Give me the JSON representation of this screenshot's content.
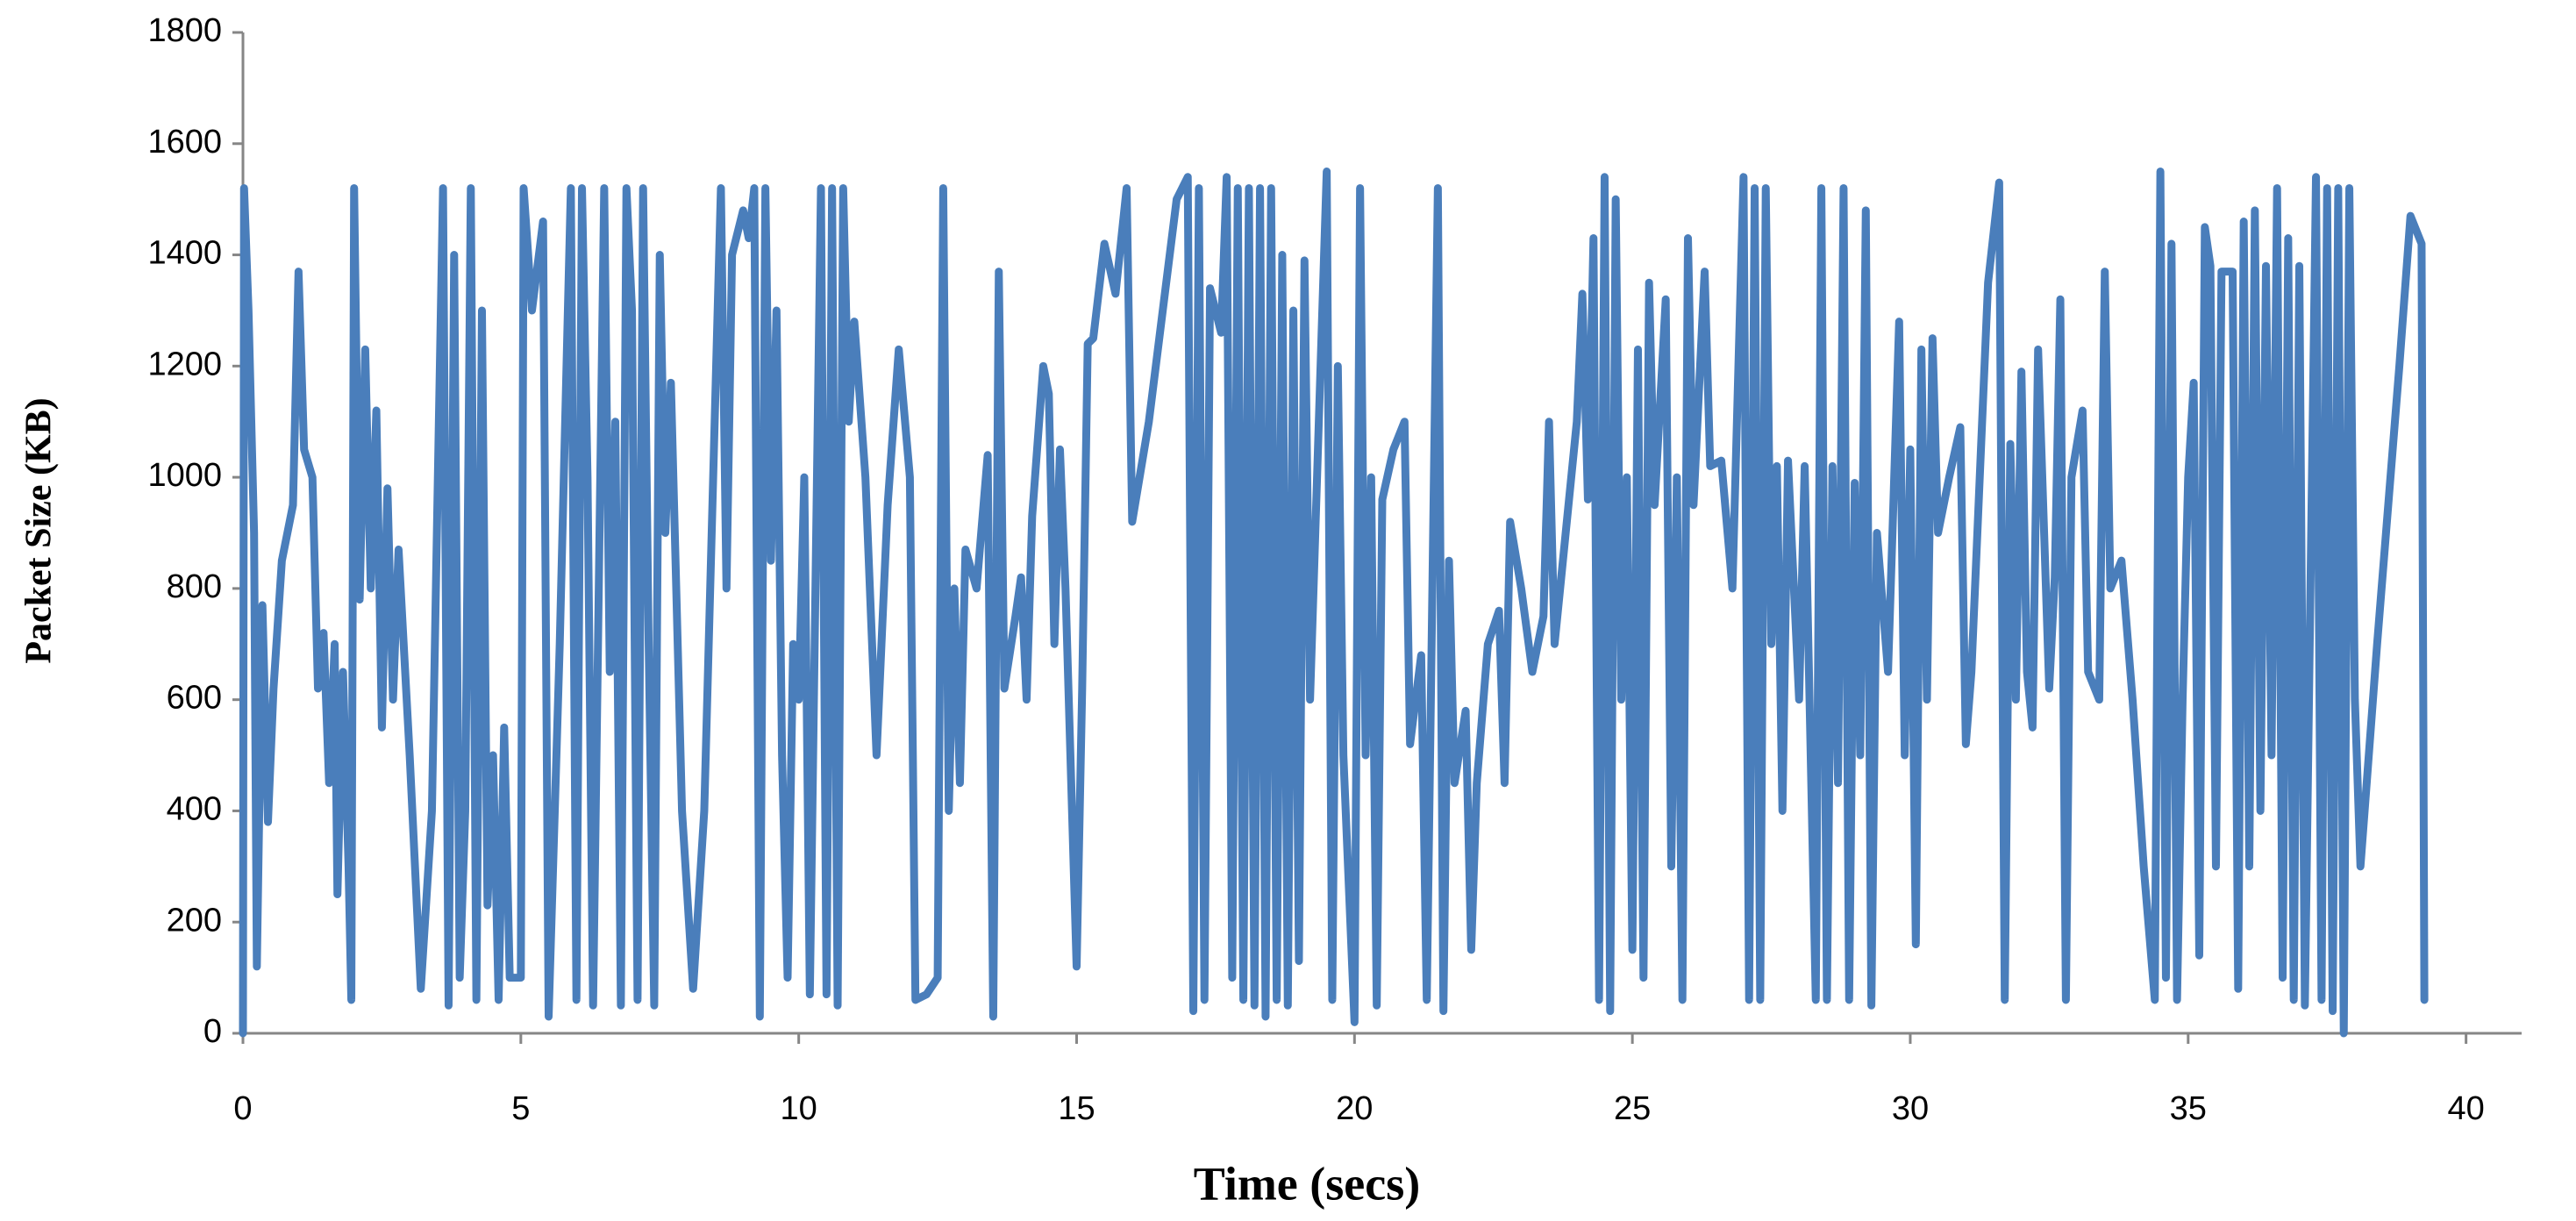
{
  "chart_data": {
    "type": "line",
    "x_label": "Time (secs)",
    "y_label": "Packet Size (KB)",
    "xlim": [
      0,
      41
    ],
    "xticks": [
      0,
      5,
      10,
      15,
      20,
      25,
      30,
      35,
      40
    ],
    "ylim": [
      0,
      1800
    ],
    "yticks": [
      0,
      200,
      400,
      600,
      800,
      1000,
      1200,
      1400,
      1600,
      1800
    ],
    "grid": false,
    "color": "#4a7ebb",
    "x": [
      0,
      0.02,
      0.1,
      0.2,
      0.25,
      0.35,
      0.45,
      0.55,
      0.7,
      0.9,
      1.0,
      1.1,
      1.25,
      1.35,
      1.45,
      1.55,
      1.65,
      1.7,
      1.8,
      1.9,
      1.95,
      2.0,
      2.1,
      2.2,
      2.3,
      2.4,
      2.5,
      2.6,
      2.7,
      2.8,
      3.0,
      3.2,
      3.4,
      3.6,
      3.7,
      3.8,
      3.9,
      4.0,
      4.1,
      4.2,
      4.3,
      4.4,
      4.5,
      4.6,
      4.7,
      4.8,
      5.0,
      5.05,
      5.2,
      5.4,
      5.5,
      5.7,
      5.9,
      6.0,
      6.1,
      6.2,
      6.3,
      6.5,
      6.6,
      6.7,
      6.8,
      6.9,
      7.0,
      7.1,
      7.2,
      7.3,
      7.4,
      7.5,
      7.6,
      7.7,
      7.9,
      8.1,
      8.3,
      8.6,
      8.7,
      8.8,
      9.0,
      9.1,
      9.2,
      9.3,
      9.4,
      9.5,
      9.6,
      9.7,
      9.8,
      9.9,
      10.0,
      10.1,
      10.2,
      10.4,
      10.5,
      10.6,
      10.7,
      10.8,
      10.9,
      11.0,
      11.2,
      11.4,
      11.6,
      11.8,
      12.0,
      12.1,
      12.3,
      12.5,
      12.6,
      12.7,
      12.8,
      12.9,
      13.0,
      13.2,
      13.4,
      13.5,
      13.6,
      13.7,
      13.9,
      14.0,
      14.1,
      14.2,
      14.4,
      14.5,
      14.6,
      14.7,
      14.8,
      15.0,
      15.1,
      15.2,
      15.3,
      15.5,
      15.7,
      15.9,
      16.0,
      16.3,
      16.8,
      17.0,
      17.1,
      17.2,
      17.3,
      17.4,
      17.6,
      17.7,
      17.8,
      17.9,
      18.0,
      18.1,
      18.2,
      18.3,
      18.4,
      18.5,
      18.6,
      18.7,
      18.8,
      18.9,
      19.0,
      19.1,
      19.2,
      19.5,
      19.6,
      19.7,
      19.8,
      20.0,
      20.1,
      20.2,
      20.3,
      20.4,
      20.5,
      20.7,
      20.9,
      21.0,
      21.2,
      21.3,
      21.5,
      21.6,
      21.7,
      21.8,
      22.0,
      22.1,
      22.2,
      22.4,
      22.6,
      22.7,
      22.8,
      23.0,
      23.2,
      23.4,
      23.5,
      23.6,
      23.8,
      24.0,
      24.1,
      24.2,
      24.3,
      24.4,
      24.5,
      24.6,
      24.7,
      24.8,
      24.9,
      25.0,
      25.1,
      25.2,
      25.3,
      25.4,
      25.6,
      25.7,
      25.8,
      25.9,
      26.0,
      26.1,
      26.3,
      26.4,
      26.6,
      26.8,
      27.0,
      27.1,
      27.2,
      27.3,
      27.4,
      27.5,
      27.6,
      27.7,
      27.8,
      28.0,
      28.1,
      28.3,
      28.4,
      28.5,
      28.6,
      28.7,
      28.8,
      28.9,
      29.0,
      29.1,
      29.2,
      29.3,
      29.4,
      29.6,
      29.8,
      29.9,
      30.0,
      30.1,
      30.2,
      30.3,
      30.4,
      30.5,
      30.7,
      30.9,
      31.0,
      31.1,
      31.4,
      31.6,
      31.7,
      31.8,
      31.9,
      32.0,
      32.1,
      32.2,
      32.3,
      32.5,
      32.6,
      32.7,
      32.8,
      32.9,
      33.1,
      33.2,
      33.4,
      33.5,
      33.6,
      33.8,
      34.0,
      34.2,
      34.4,
      34.5,
      34.6,
      34.7,
      34.8,
      34.9,
      35.0,
      35.1,
      35.2,
      35.3,
      35.4,
      35.5,
      35.6,
      35.8,
      35.9,
      36.0,
      36.1,
      36.2,
      36.3,
      36.4,
      36.5,
      36.6,
      36.7,
      36.8,
      36.9,
      37.0,
      37.1,
      37.3,
      37.4,
      37.5,
      37.6,
      37.7,
      37.8,
      37.9,
      38.0,
      38.1,
      38.4,
      38.8,
      39.0,
      39.2,
      39.25
    ],
    "values": [
      0,
      1520,
      1300,
      900,
      120,
      770,
      380,
      620,
      850,
      950,
      1370,
      1050,
      1000,
      620,
      720,
      450,
      700,
      250,
      650,
      300,
      60,
      1520,
      780,
      1230,
      800,
      1120,
      550,
      980,
      600,
      870,
      500,
      80,
      400,
      1520,
      50,
      1400,
      100,
      400,
      1520,
      60,
      1300,
      230,
      500,
      60,
      550,
      100,
      100,
      1520,
      1300,
      1460,
      30,
      700,
      1520,
      60,
      1520,
      1000,
      50,
      1520,
      650,
      1100,
      50,
      1520,
      1300,
      60,
      1520,
      700,
      50,
      1400,
      900,
      1170,
      400,
      80,
      400,
      1520,
      800,
      1400,
      1480,
      1430,
      1520,
      30,
      1520,
      850,
      1300,
      500,
      100,
      700,
      600,
      1000,
      70,
      1520,
      70,
      1520,
      50,
      1520,
      1100,
      1280,
      1000,
      500,
      950,
      1230,
      1000,
      60,
      70,
      100,
      1520,
      400,
      800,
      450,
      870,
      800,
      1040,
      30,
      1370,
      620,
      750,
      820,
      600,
      930,
      1200,
      1150,
      700,
      1050,
      800,
      120,
      620,
      1240,
      1250,
      1420,
      1330,
      1520,
      920,
      1100,
      1500,
      1540,
      40,
      1520,
      60,
      1340,
      1260,
      1540,
      100,
      1520,
      60,
      1520,
      50,
      1520,
      30,
      1520,
      60,
      1400,
      50,
      1300,
      130,
      1390,
      600,
      1550,
      60,
      1200,
      500,
      20,
      1520,
      500,
      1000,
      50,
      960,
      1050,
      1100,
      520,
      680,
      60,
      1520,
      40,
      850,
      450,
      580,
      150,
      450,
      700,
      760,
      450,
      920,
      800,
      650,
      750,
      1100,
      700,
      900,
      1100,
      1330,
      960,
      1430,
      60,
      1540,
      40,
      1500,
      600,
      1000,
      150,
      1230,
      100,
      1350,
      950,
      1320,
      300,
      1000,
      60,
      1430,
      950,
      1370,
      1020,
      1030,
      800,
      1540,
      60,
      1520,
      60,
      1520,
      700,
      1020,
      400,
      1030,
      600,
      1020,
      60,
      1520,
      60,
      1020,
      450,
      1520,
      60,
      990,
      500,
      1480,
      50,
      900,
      650,
      1280,
      500,
      1050,
      160,
      1230,
      600,
      1250,
      900,
      1000,
      1090,
      520,
      650,
      1350,
      1530,
      60,
      1060,
      600,
      1190,
      650,
      550,
      1230,
      620,
      820,
      1320,
      60,
      1000,
      1120,
      650,
      600,
      1370,
      800,
      850,
      600,
      300,
      60,
      1550,
      100,
      1420,
      60,
      600,
      1000,
      1170,
      140,
      1450,
      1380,
      300,
      1370,
      1370,
      80,
      1460,
      300,
      1480,
      400,
      1380,
      500,
      1520,
      100,
      1430,
      60,
      1380,
      50,
      1540,
      60,
      1520,
      40,
      1520,
      0,
      1520,
      600,
      300,
      700,
      1200,
      1470,
      1420,
      60
    ]
  }
}
